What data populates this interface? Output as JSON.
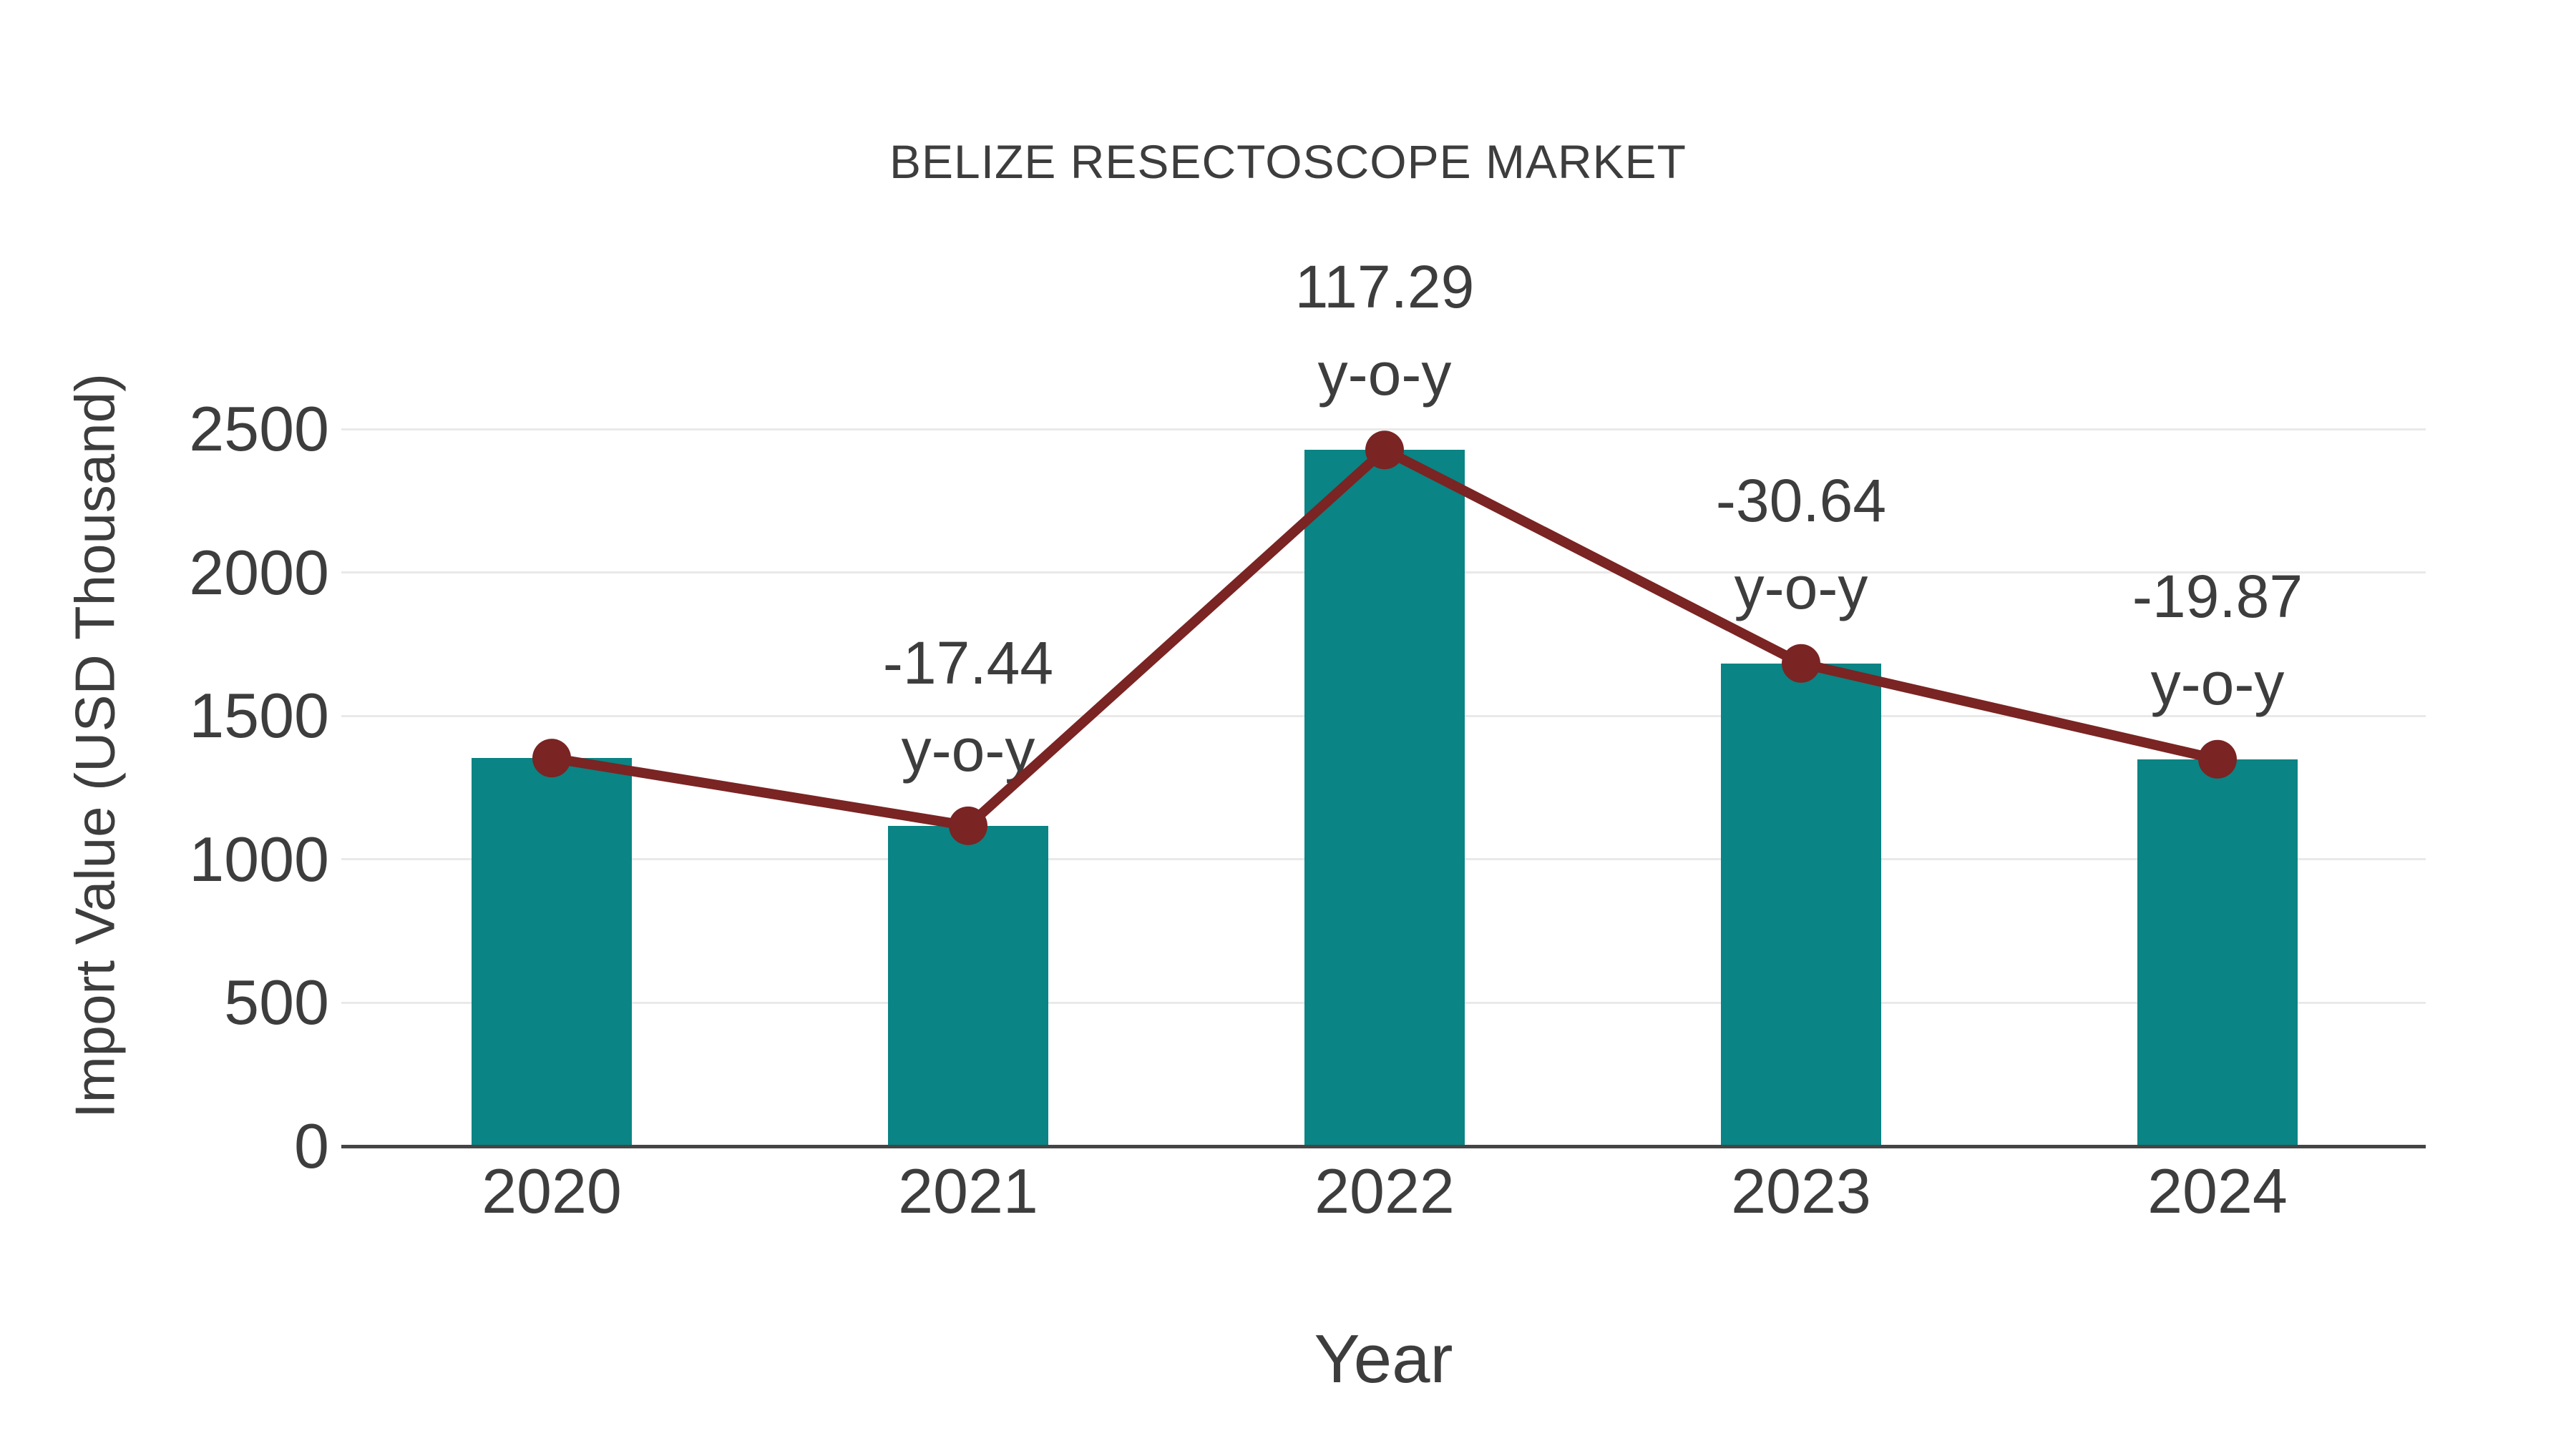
{
  "page": {
    "background": "#ffffff"
  },
  "colors": {
    "bar": "#0a8484",
    "line": "#7a2423",
    "marker": "#7a2423",
    "text": "#3d3d3d",
    "axis_line": "#454545",
    "gridline": "#e9e9e9"
  },
  "chart_data": {
    "type": "bar",
    "title": "BELIZE RESECTOSCOPE MARKET",
    "xlabel": "Year",
    "ylabel": "Import Value (USD Thousand)",
    "categories": [
      "2020",
      "2021",
      "2022",
      "2023",
      "2024"
    ],
    "series": [
      {
        "name": "Import Value",
        "type": "bar",
        "color": "#0a8484",
        "values": [
          1353,
          1117,
          2427,
          1683,
          1349
        ]
      },
      {
        "name": "y-o-y change line",
        "type": "line",
        "color": "#7a2423",
        "values": [
          1353,
          1117,
          2427,
          1683,
          1349
        ]
      }
    ],
    "annotations": [
      {
        "category": "2021",
        "value": "-17.44",
        "suffix": "y-o-y"
      },
      {
        "category": "2022",
        "value": "117.29",
        "suffix": "y-o-y"
      },
      {
        "category": "2023",
        "value": "-30.64",
        "suffix": "y-o-y"
      },
      {
        "category": "2024",
        "value": "-19.87",
        "suffix": "y-o-y"
      }
    ],
    "y_ticks": [
      0,
      500,
      1000,
      1500,
      2000,
      2500
    ],
    "ylim": [
      0,
      2650
    ],
    "grid": "horizontal",
    "legend": "none"
  }
}
